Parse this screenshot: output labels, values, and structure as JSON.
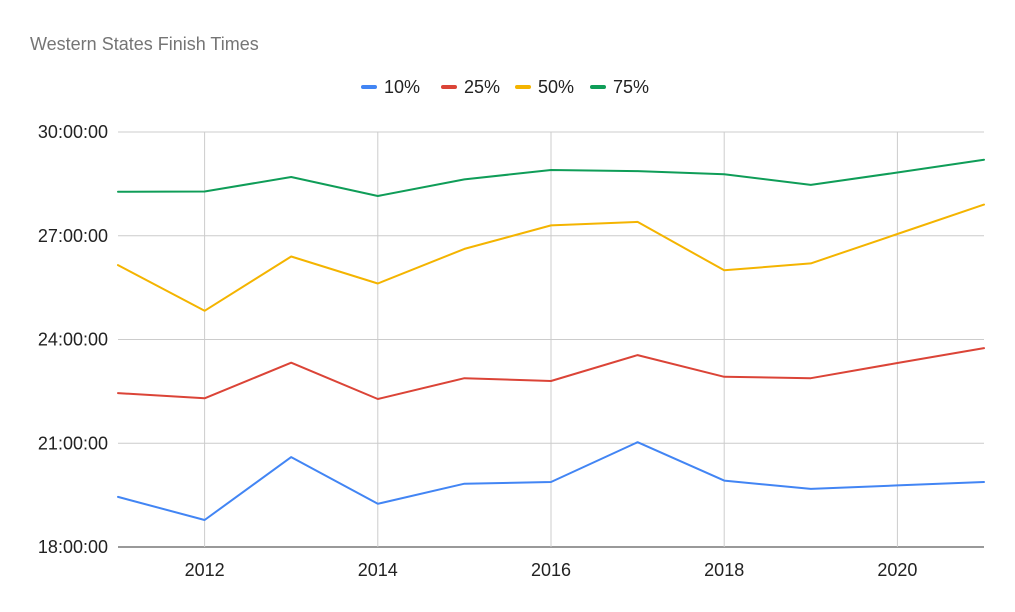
{
  "chart_data": {
    "type": "line",
    "title": "Western States Finish Times",
    "xlabel": "",
    "ylabel": "",
    "x": [
      2011,
      2012,
      2013,
      2014,
      2015,
      2016,
      2017,
      2018,
      2019,
      2020,
      2021
    ],
    "x_ticks": [
      "2012",
      "2014",
      "2016",
      "2018",
      "2020"
    ],
    "xlim": [
      2011,
      2021
    ],
    "ylim": [
      "18:00:00",
      "30:00:00"
    ],
    "y_ticks": [
      "18:00:00",
      "21:00:00",
      "24:00:00",
      "27:00:00",
      "30:00:00"
    ],
    "y_unit": "hours",
    "grid": true,
    "legend_position": "top-center",
    "series": [
      {
        "name": "10%",
        "color": "#4285f4",
        "values": [
          19.45,
          18.78,
          20.6,
          19.25,
          19.83,
          19.88,
          21.03,
          19.92,
          19.68,
          19.78,
          19.88
        ]
      },
      {
        "name": "25%",
        "color": "#db4437",
        "values": [
          22.45,
          22.3,
          23.33,
          22.28,
          22.88,
          22.8,
          23.55,
          22.92,
          22.88,
          23.32,
          23.75
        ]
      },
      {
        "name": "50%",
        "color": "#f4b400",
        "values": [
          26.15,
          24.83,
          26.4,
          25.62,
          26.62,
          27.3,
          27.4,
          26.0,
          26.2,
          27.05,
          27.9
        ]
      },
      {
        "name": "75%",
        "color": "#0f9d58",
        "values": [
          28.27,
          28.28,
          28.7,
          28.15,
          28.63,
          28.9,
          28.87,
          28.78,
          28.47,
          28.83,
          29.2
        ]
      }
    ]
  }
}
